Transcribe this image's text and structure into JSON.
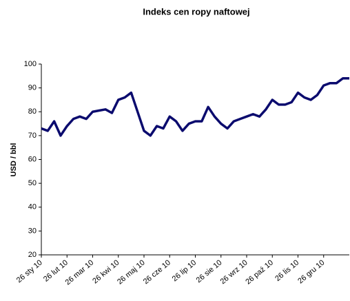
{
  "chart_data": {
    "type": "line",
    "title": "Indeks cen ropy naftowej",
    "y_label": "USD / bbl",
    "categories": [
      "26 sty 10",
      null,
      null,
      null,
      "26 lut 10",
      null,
      null,
      null,
      "26 mar 10",
      null,
      null,
      null,
      "26 kwi 10",
      null,
      null,
      null,
      "26 maj 10",
      null,
      null,
      null,
      "26 cze 10",
      null,
      null,
      null,
      "26 lip 10",
      null,
      null,
      null,
      "26 sie 10",
      null,
      null,
      null,
      "26 wrz 10",
      null,
      null,
      null,
      "26 paź 10",
      null,
      null,
      null,
      "26 lis 10",
      null,
      null,
      null,
      "26 gru 10",
      null,
      null,
      null,
      null
    ],
    "series": [
      {
        "name": "Indeks cen ropy naftowej",
        "color": "#0b0b6e",
        "values": [
          73,
          72,
          76,
          70,
          74,
          77,
          78,
          77,
          80,
          80.5,
          81,
          79.5,
          85,
          86,
          88,
          80,
          72,
          70,
          74,
          73,
          78,
          76,
          72,
          75,
          76,
          76,
          82,
          78,
          75,
          73,
          76,
          77,
          78,
          79,
          78,
          81,
          85,
          83,
          83,
          84,
          88,
          86,
          85,
          87,
          91,
          92,
          92,
          94,
          94
        ]
      }
    ],
    "ylim": [
      20,
      100
    ],
    "yticks": [
      20,
      30,
      40,
      50,
      60,
      70,
      80,
      90,
      100
    ]
  }
}
